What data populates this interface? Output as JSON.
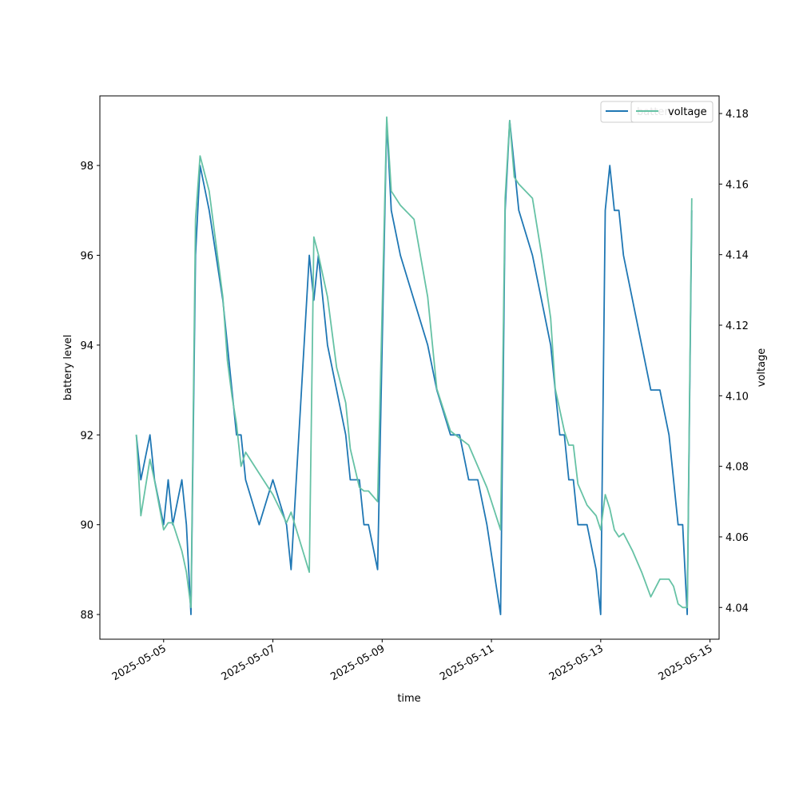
{
  "chart_data": {
    "type": "line",
    "title": "",
    "xlabel": "time",
    "ylabel": "battery level",
    "ylabel_right": "voltage",
    "x_ticks": [
      "2025-05-05",
      "2025-05-07",
      "2025-05-09",
      "2025-05-11",
      "2025-05-13",
      "2025-05-15"
    ],
    "y_ticks_left": [
      "88",
      "90",
      "92",
      "94",
      "96",
      "98"
    ],
    "y_ticks_right": [
      "4.04",
      "4.06",
      "4.08",
      "4.10",
      "4.12",
      "4.14",
      "4.16",
      "4.18"
    ],
    "x_range": [
      "2025-05-03T20:00",
      "2025-05-15T04:00"
    ],
    "ylim_left": [
      87.45,
      99.55
    ],
    "ylim_right": [
      4.031,
      4.185
    ],
    "legend_placement": "top-right",
    "colors": {
      "battery": "#1f77b4",
      "voltage": "#66c2a5"
    },
    "series": [
      {
        "name": "battery",
        "axis": "left",
        "x": [
          "2025-05-04T12:00",
          "2025-05-04T14:00",
          "2025-05-04T18:00",
          "2025-05-04T20:00",
          "2025-05-05T00:00",
          "2025-05-05T02:00",
          "2025-05-05T04:00",
          "2025-05-05T08:00",
          "2025-05-05T10:00",
          "2025-05-05T12:00",
          "2025-05-05T14:00",
          "2025-05-05T16:00",
          "2025-05-05T20:00",
          "2025-05-06T02:00",
          "2025-05-06T04:00",
          "2025-05-06T06:00",
          "2025-05-06T08:00",
          "2025-05-06T10:00",
          "2025-05-06T12:00",
          "2025-05-06T18:00",
          "2025-05-07T00:00",
          "2025-05-07T06:00",
          "2025-05-07T08:00",
          "2025-05-07T16:00",
          "2025-05-07T18:00",
          "2025-05-07T20:00",
          "2025-05-08T00:00",
          "2025-05-08T04:00",
          "2025-05-08T08:00",
          "2025-05-08T10:00",
          "2025-05-08T14:00",
          "2025-05-08T16:00",
          "2025-05-08T18:00",
          "2025-05-08T22:00",
          "2025-05-09T02:00",
          "2025-05-09T04:00",
          "2025-05-09T08:00",
          "2025-05-09T14:00",
          "2025-05-09T20:00",
          "2025-05-10T00:00",
          "2025-05-10T06:00",
          "2025-05-10T10:00",
          "2025-05-10T14:00",
          "2025-05-10T18:00",
          "2025-05-10T22:00",
          "2025-05-11T04:00",
          "2025-05-11T06:00",
          "2025-05-11T08:00",
          "2025-05-11T10:00",
          "2025-05-11T12:00",
          "2025-05-11T18:00",
          "2025-05-11T22:00",
          "2025-05-12T02:00",
          "2025-05-12T04:00",
          "2025-05-12T06:00",
          "2025-05-12T08:00",
          "2025-05-12T10:00",
          "2025-05-12T12:00",
          "2025-05-12T14:00",
          "2025-05-12T18:00",
          "2025-05-12T22:00",
          "2025-05-13T00:00",
          "2025-05-13T02:00",
          "2025-05-13T04:00",
          "2025-05-13T06:00",
          "2025-05-13T08:00",
          "2025-05-13T10:00",
          "2025-05-13T14:00",
          "2025-05-13T18:00",
          "2025-05-13T22:00",
          "2025-05-14T02:00",
          "2025-05-14T06:00",
          "2025-05-14T08:00",
          "2025-05-14T10:00",
          "2025-05-14T12:00",
          "2025-05-14T14:00",
          "2025-05-14T16:00"
        ],
        "values": [
          92,
          91,
          92,
          91,
          90,
          91,
          90,
          91,
          90,
          88,
          96,
          98,
          97,
          95,
          94,
          93,
          92,
          92,
          91,
          90,
          91,
          90,
          89,
          96,
          95,
          96,
          94,
          93,
          92,
          91,
          91,
          90,
          90,
          89,
          99,
          97,
          96,
          95,
          94,
          93,
          92,
          92,
          91,
          91,
          90,
          88,
          97,
          99,
          98,
          97,
          96,
          95,
          94,
          93,
          92,
          92,
          91,
          91,
          90,
          90,
          89,
          88,
          97,
          98,
          97,
          97,
          96,
          95,
          94,
          93,
          93,
          92,
          91,
          90,
          90,
          88,
          97
        ]
      },
      {
        "name": "voltage",
        "axis": "right",
        "x": [
          "2025-05-04T12:00",
          "2025-05-04T14:00",
          "2025-05-04T18:00",
          "2025-05-04T20:00",
          "2025-05-05T00:00",
          "2025-05-05T02:00",
          "2025-05-05T04:00",
          "2025-05-05T08:00",
          "2025-05-05T10:00",
          "2025-05-05T12:00",
          "2025-05-05T14:00",
          "2025-05-05T16:00",
          "2025-05-05T20:00",
          "2025-05-06T02:00",
          "2025-05-06T04:00",
          "2025-05-06T06:00",
          "2025-05-06T08:00",
          "2025-05-06T10:00",
          "2025-05-06T12:00",
          "2025-05-06T18:00",
          "2025-05-07T00:00",
          "2025-05-07T06:00",
          "2025-05-07T08:00",
          "2025-05-07T16:00",
          "2025-05-07T18:00",
          "2025-05-07T20:00",
          "2025-05-08T00:00",
          "2025-05-08T04:00",
          "2025-05-08T08:00",
          "2025-05-08T10:00",
          "2025-05-08T14:00",
          "2025-05-08T16:00",
          "2025-05-08T18:00",
          "2025-05-08T22:00",
          "2025-05-09T02:00",
          "2025-05-09T04:00",
          "2025-05-09T08:00",
          "2025-05-09T14:00",
          "2025-05-09T20:00",
          "2025-05-10T00:00",
          "2025-05-10T06:00",
          "2025-05-10T10:00",
          "2025-05-10T14:00",
          "2025-05-10T18:00",
          "2025-05-10T22:00",
          "2025-05-11T04:00",
          "2025-05-11T06:00",
          "2025-05-11T08:00",
          "2025-05-11T10:00",
          "2025-05-11T12:00",
          "2025-05-11T18:00",
          "2025-05-11T22:00",
          "2025-05-12T02:00",
          "2025-05-12T04:00",
          "2025-05-12T06:00",
          "2025-05-12T08:00",
          "2025-05-12T10:00",
          "2025-05-12T12:00",
          "2025-05-12T14:00",
          "2025-05-12T18:00",
          "2025-05-12T22:00",
          "2025-05-13T00:00",
          "2025-05-13T02:00",
          "2025-05-13T04:00",
          "2025-05-13T06:00",
          "2025-05-13T08:00",
          "2025-05-13T10:00",
          "2025-05-13T14:00",
          "2025-05-13T18:00",
          "2025-05-13T22:00",
          "2025-05-14T02:00",
          "2025-05-14T06:00",
          "2025-05-14T08:00",
          "2025-05-14T10:00",
          "2025-05-14T12:00",
          "2025-05-14T14:00",
          "2025-05-14T16:00"
        ],
        "values": [
          4.089,
          4.066,
          4.082,
          4.076,
          4.062,
          4.064,
          4.064,
          4.056,
          4.05,
          4.04,
          4.15,
          4.168,
          4.158,
          4.128,
          4.11,
          4.1,
          4.092,
          4.08,
          4.084,
          4.078,
          4.072,
          4.064,
          4.067,
          4.05,
          4.145,
          4.14,
          4.128,
          4.108,
          4.098,
          4.085,
          4.074,
          4.073,
          4.073,
          4.07,
          4.179,
          4.158,
          4.154,
          4.15,
          4.128,
          4.102,
          4.09,
          4.088,
          4.086,
          4.08,
          4.074,
          4.062,
          4.156,
          4.178,
          4.162,
          4.16,
          4.156,
          4.14,
          4.122,
          4.102,
          4.096,
          4.09,
          4.086,
          4.086,
          4.075,
          4.069,
          4.066,
          4.062,
          4.072,
          4.068,
          4.062,
          4.06,
          4.061,
          4.056,
          4.05,
          4.043,
          4.048,
          4.048,
          4.046,
          4.041,
          4.04,
          4.04,
          4.156
        ]
      }
    ]
  }
}
